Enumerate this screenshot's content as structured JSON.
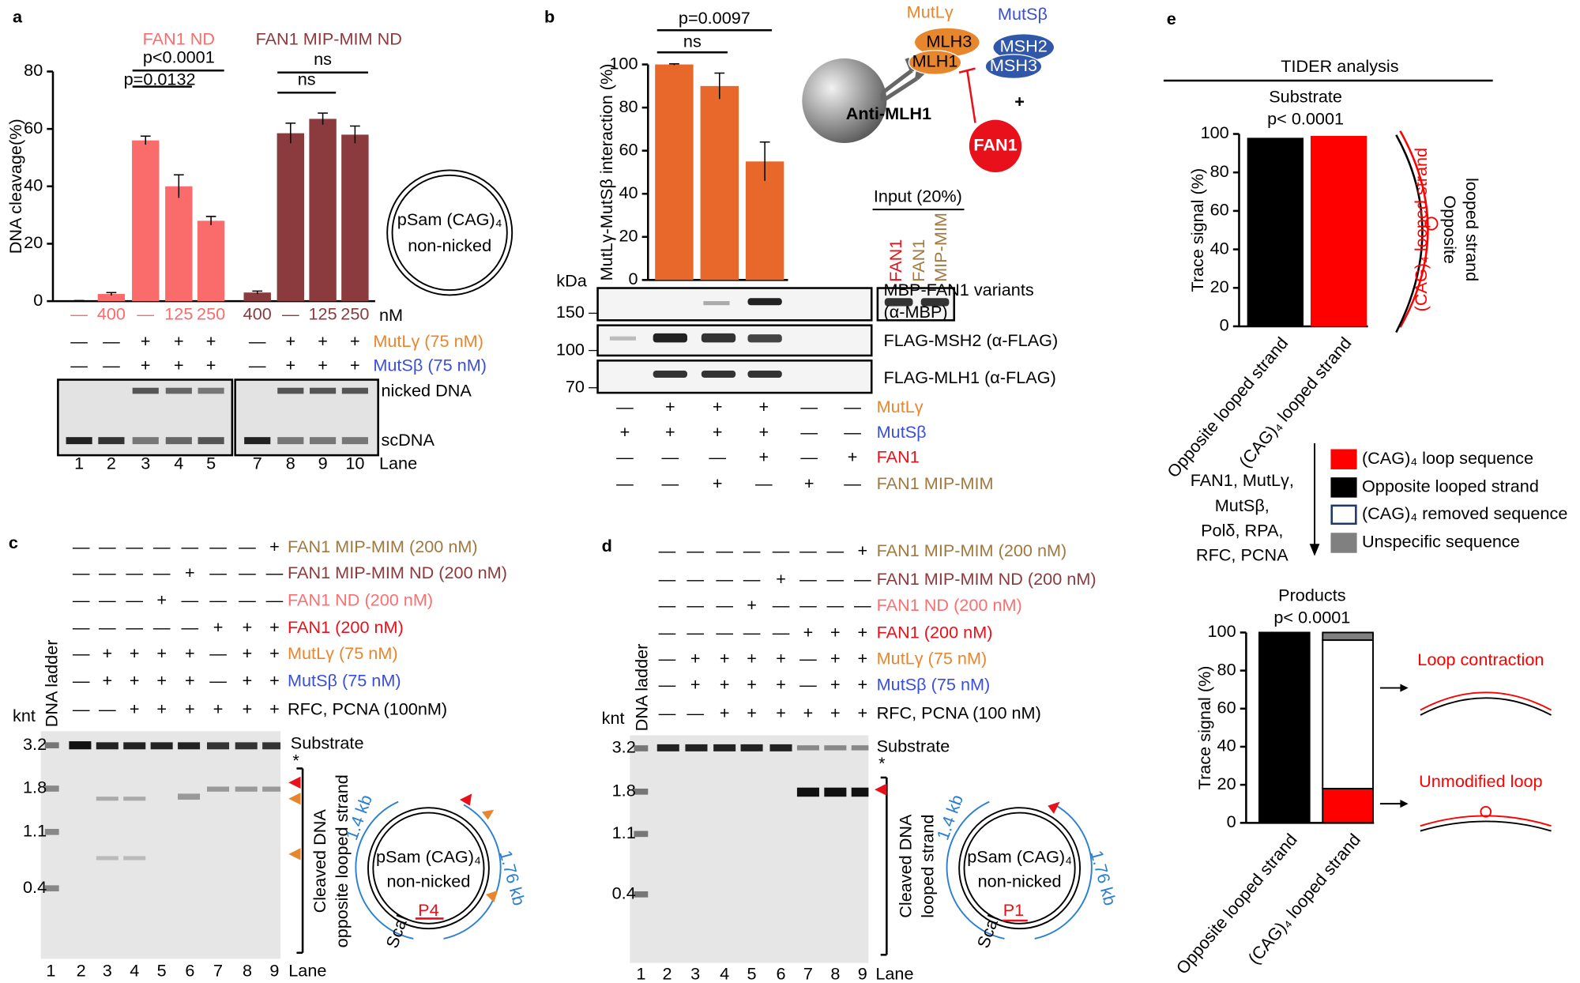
{
  "panel_labels": [
    "a",
    "b",
    "c",
    "d",
    "e"
  ],
  "chart_data": [
    {
      "type": "bar",
      "ylabel": "DNA cleavage(%)",
      "ylim": [
        0,
        80
      ],
      "yticks": [
        0,
        20,
        40,
        60,
        80
      ],
      "categories": [
        "—",
        "400",
        "—",
        "125",
        "250",
        "400",
        "—",
        "125",
        "250"
      ],
      "x_unit": "nM",
      "values": [
        0,
        2.5,
        56,
        40,
        28,
        3,
        58.5,
        63.5,
        58
      ],
      "errors": [
        0.2,
        0.5,
        1.5,
        4,
        1.5,
        0.5,
        3.5,
        2,
        3
      ],
      "colors": [
        "#fa6b6b",
        "#fa6b6b",
        "#fa6b6b",
        "#fa6b6b",
        "#fa6b6b",
        "#8b3a3e",
        "#8b3a3e",
        "#8b3a3e",
        "#8b3a3e"
      ],
      "groups": [
        {
          "name": "FAN1 ND",
          "color": "#fa6b6b"
        },
        {
          "name": "FAN1 MIP-MIM ND",
          "color": "#8b3a3e"
        }
      ],
      "annotations": [
        "p<0.0001",
        "p=0.0132",
        "ns",
        "ns"
      ]
    },
    {
      "type": "bar",
      "ylabel": "MutLγ-MutSβ interaction (%)",
      "ylim": [
        0,
        100
      ],
      "yticks": [
        0,
        20,
        40,
        60,
        80,
        100
      ],
      "values": [
        100,
        90,
        55
      ],
      "errors": [
        0.3,
        6,
        9
      ],
      "color": "#e8672a",
      "annotations": [
        "ns",
        "p=0.0097"
      ]
    },
    {
      "type": "bar",
      "title": "Substrate",
      "subtitle": "p< 0.0001",
      "ylabel": "Trace signal (%)",
      "ylim": [
        0,
        100
      ],
      "yticks": [
        0,
        20,
        40,
        60,
        80,
        100
      ],
      "categories": [
        "Opposite looped strand",
        "(CAG)₄ looped strand"
      ],
      "values": [
        98,
        99
      ],
      "colors": [
        "#000000",
        "#ff0000"
      ]
    },
    {
      "type": "stacked_bar",
      "title": "Products",
      "subtitle": "p< 0.0001",
      "ylabel": "Trace signal (%)",
      "ylim": [
        0,
        100
      ],
      "yticks": [
        0,
        20,
        40,
        60,
        80,
        100
      ],
      "categories": [
        "Opposite looped strand",
        "(CAG)₄ looped strand"
      ],
      "series": [
        {
          "name": "(CAG)₄ loop sequence",
          "color": "#ff0000",
          "values": [
            0,
            18
          ]
        },
        {
          "name": "Opposite looped strand",
          "color": "#000000",
          "values": [
            100,
            0
          ]
        },
        {
          "name": "(CAG)₄ removed sequence",
          "color": "#ffffff",
          "edgecolor": "#1f3864",
          "values": [
            0,
            78
          ]
        },
        {
          "name": "Unspecific sequence",
          "color": "#808080",
          "values": [
            0,
            4
          ]
        }
      ]
    }
  ],
  "panel_a": {
    "conditions": [
      {
        "label": "MutLγ (75 nM)",
        "color": "#e8862e",
        "marks": [
          "—",
          "—",
          "+",
          "+",
          "+",
          "—",
          "+",
          "+",
          "+"
        ]
      },
      {
        "label": "MutSβ (75 nM)",
        "color": "#3a4fd8",
        "marks": [
          "—",
          "—",
          "+",
          "+",
          "+",
          "—",
          "+",
          "+",
          "+"
        ]
      }
    ],
    "gel_labels": [
      "nicked DNA",
      "scDNA"
    ],
    "lanes": [
      "1",
      "2",
      "3",
      "4",
      "5",
      "7",
      "8",
      "9",
      "10"
    ],
    "lane_title": "Lane",
    "plasmid": [
      "pSam (CAG)₄",
      "non-nicked"
    ]
  },
  "panel_b": {
    "conditions": [
      {
        "label": "MutLγ",
        "color": "#e8862e",
        "marks": [
          "—",
          "+",
          "+",
          "+",
          "—",
          "—"
        ]
      },
      {
        "label": "MutSβ",
        "color": "#3a4fd8",
        "marks": [
          "+",
          "+",
          "+",
          "+",
          "—",
          "—"
        ]
      },
      {
        "label": "FAN1",
        "color": "#e8101a",
        "marks": [
          "—",
          "—",
          "—",
          "+",
          "—",
          "+"
        ]
      },
      {
        "label": "FAN1 MIP-MIM",
        "color": "#a07840",
        "marks": [
          "—",
          "—",
          "+",
          "—",
          "+",
          "—"
        ]
      }
    ],
    "blots": [
      "MBP-FAN1 variants",
      "(α-MBP)",
      "FLAG-MSH2 (α-FLAG)",
      "FLAG-MLH1 (α-FLAG)"
    ],
    "kda": "kDa",
    "markers": [
      "150",
      "100",
      "70"
    ],
    "input": "Input (20%)",
    "input_lanes": [
      "FAN1",
      "FAN1",
      "MIP-MIM"
    ],
    "diagram": {
      "mutl": "MutLγ",
      "muts": "MutSβ",
      "mlh3": "MLH3",
      "mlh1": "MLH1",
      "msh2": "MSH2",
      "msh3": "MSH3",
      "antibody": "Anti-MLH1",
      "fan1": "FAN1",
      "plus": "+"
    }
  },
  "panel_c": {
    "conditions": [
      {
        "label": "FAN1 MIP-MIM (200 nM)",
        "color": "#a07840",
        "marks": [
          "—",
          "—",
          "—",
          "—",
          "—",
          "—",
          "—",
          "+"
        ]
      },
      {
        "label": "FAN1 MIP-MIM ND (200 nM)",
        "color": "#8b3a3e",
        "marks": [
          "—",
          "—",
          "—",
          "—",
          "+",
          "—",
          "—",
          "—"
        ]
      },
      {
        "label": "FAN1 ND (200 nM)",
        "color": "#fa7070",
        "marks": [
          "—",
          "—",
          "—",
          "+",
          "—",
          "—",
          "—",
          "—"
        ]
      },
      {
        "label": "FAN1 (200 nM)",
        "color": "#e8101a",
        "marks": [
          "—",
          "—",
          "—",
          "—",
          "—",
          "+",
          "+",
          "+"
        ]
      },
      {
        "label": "MutLγ (75 nM)",
        "color": "#e8862e",
        "marks": [
          "—",
          "+",
          "+",
          "+",
          "+",
          "—",
          "+",
          "+"
        ]
      },
      {
        "label": "MutSβ (75 nM)",
        "color": "#3a4fd8",
        "marks": [
          "—",
          "+",
          "+",
          "+",
          "+",
          "—",
          "+",
          "+"
        ]
      },
      {
        "label": "RFC, PCNA (100nM)",
        "color": "#000000",
        "marks": [
          "—",
          "—",
          "+",
          "+",
          "+",
          "+",
          "+",
          "+"
        ]
      }
    ],
    "ladder": "DNA ladder",
    "knt": "knt",
    "sizes": [
      "3.2",
      "1.8",
      "1.1",
      "0.4"
    ],
    "substrate": "Substrate",
    "asterisk": "*",
    "bracket": [
      "Cleaved DNA",
      "opposite looped strand"
    ],
    "lanes": [
      "1",
      "2",
      "3",
      "4",
      "5",
      "6",
      "7",
      "8",
      "9"
    ],
    "lane_title": "Lane",
    "plasmid": {
      "name": [
        "pSam (CAG)₄",
        "non-nicked"
      ],
      "arcs": [
        "1.4 kb",
        "1.76 kb"
      ],
      "primer": "P4",
      "site": "ScaI"
    }
  },
  "panel_d": {
    "conditions": [
      {
        "label": "FAN1 MIP-MIM (200 nM)",
        "color": "#a07840",
        "marks": [
          "—",
          "—",
          "—",
          "—",
          "—",
          "—",
          "—",
          "+"
        ]
      },
      {
        "label": "FAN1 MIP-MIM ND (200 nM)",
        "color": "#8b3a3e",
        "marks": [
          "—",
          "—",
          "—",
          "—",
          "+",
          "—",
          "—",
          "—"
        ]
      },
      {
        "label": "FAN1 ND (200 nM)",
        "color": "#fa7070",
        "marks": [
          "—",
          "—",
          "—",
          "+",
          "—",
          "—",
          "—",
          "—"
        ]
      },
      {
        "label": "FAN1 (200 nM)",
        "color": "#e8101a",
        "marks": [
          "—",
          "—",
          "—",
          "—",
          "—",
          "+",
          "+",
          "+"
        ]
      },
      {
        "label": "MutLγ (75 nM)",
        "color": "#e8862e",
        "marks": [
          "—",
          "+",
          "+",
          "+",
          "+",
          "—",
          "+",
          "+"
        ]
      },
      {
        "label": "MutSβ (75 nM)",
        "color": "#3a4fd8",
        "marks": [
          "—",
          "+",
          "+",
          "+",
          "+",
          "—",
          "+",
          "+"
        ]
      },
      {
        "label": "RFC, PCNA (100 nM)",
        "color": "#000000",
        "marks": [
          "—",
          "—",
          "+",
          "+",
          "+",
          "+",
          "+",
          "+"
        ]
      }
    ],
    "ladder": "DNA ladder",
    "knt": "knt",
    "sizes": [
      "3.2",
      "1.8",
      "1.1",
      "0.4"
    ],
    "substrate": "Substrate",
    "asterisk": "*",
    "bracket": [
      "Cleaved DNA",
      "looped strand"
    ],
    "lanes": [
      "1",
      "2",
      "3",
      "4",
      "5",
      "6",
      "7",
      "8",
      "9"
    ],
    "lane_title": "Lane",
    "plasmid": {
      "name": [
        "pSam (CAG)₄",
        "non-nicked"
      ],
      "arcs": [
        "1.4 kb",
        "1.76 kb"
      ],
      "primer": "P1",
      "site": "ScaI"
    }
  },
  "panel_e": {
    "title": "TIDER analysis",
    "process": [
      "FAN1, MutLγ,",
      "MutSβ,",
      "Polδ, RPA,",
      "RFC, PCNA"
    ],
    "strands": [
      "(CAG)₄ looped strand",
      "Opposite",
      "looped strand"
    ],
    "outcomes": [
      "Loop contraction",
      "Unmodified loop"
    ]
  }
}
